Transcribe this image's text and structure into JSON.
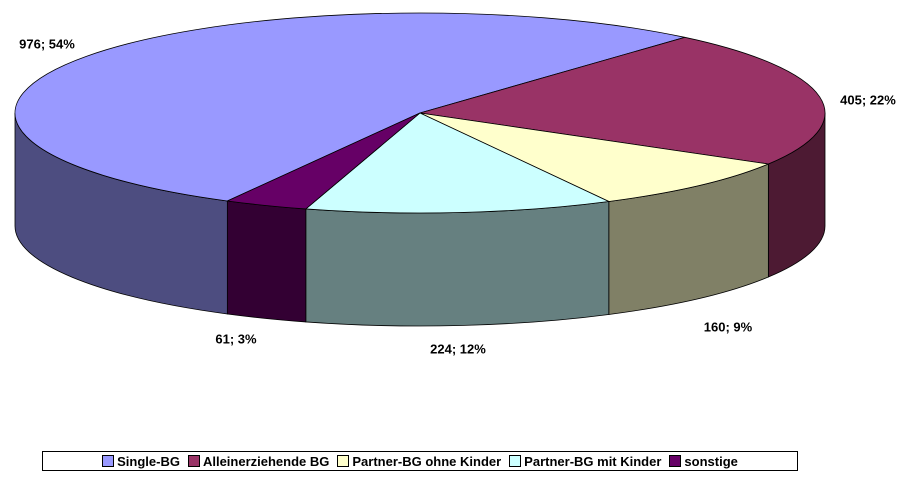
{
  "chart_data": {
    "type": "pie3d",
    "categories": [
      "Single-BG",
      "Alleinerziehende BG",
      "Partner-BG ohne Kinder",
      "Partner-BG mit Kinder",
      "sonstige"
    ],
    "values": [
      976,
      405,
      160,
      224,
      61
    ],
    "value_labels": [
      "976; 54%",
      "405; 22%",
      "160; 9%",
      "224; 12%",
      "61; 3%"
    ],
    "colors": [
      "#9999ff",
      "#993366",
      "#ffffcc",
      "#ccffff",
      "#660066"
    ],
    "legend": "bottom"
  }
}
